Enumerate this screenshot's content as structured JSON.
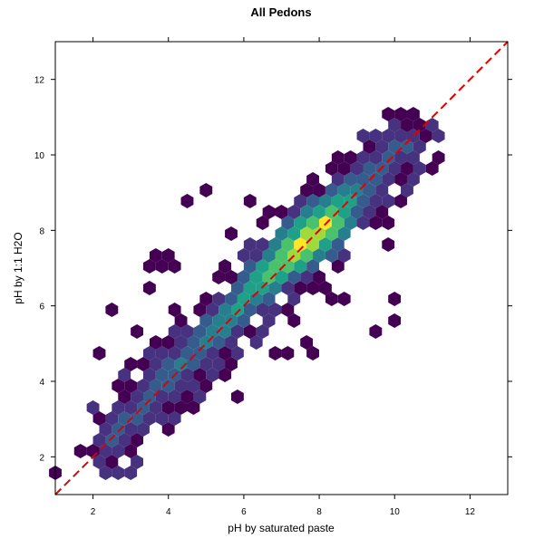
{
  "chart_data": {
    "type": "heatmap",
    "subtype": "hexbin",
    "title": "All Pedons",
    "xlabel": "pH by saturated paste",
    "ylabel": "pH by 1:1 H2O",
    "xlim": [
      1,
      13
    ],
    "ylim": [
      1,
      13
    ],
    "x_ticks": [
      2,
      4,
      6,
      8,
      10,
      12
    ],
    "y_ticks": [
      2,
      4,
      6,
      8,
      10,
      12
    ],
    "x_tick_labels": [
      "2",
      "4",
      "6",
      "8",
      "10",
      "12"
    ],
    "y_tick_labels": [
      "2",
      "4",
      "6",
      "8",
      "10",
      "12"
    ],
    "grid": false,
    "reference_line": {
      "slope": 1,
      "intercept": 0,
      "style": "dashed",
      "color": "#e00000"
    },
    "colormap": [
      "#440154",
      "#46327e",
      "#365c8d",
      "#277f8e",
      "#1fa187",
      "#4ac16d",
      "#9fda3a",
      "#fde725"
    ],
    "ridge": [
      [
        2.5,
        2.4
      ],
      [
        3.5,
        3.6
      ],
      [
        4.5,
        4.6
      ],
      [
        5.5,
        5.6
      ],
      [
        6.5,
        6.7
      ],
      [
        7.5,
        7.6
      ],
      [
        8.5,
        8.5
      ],
      [
        9.5,
        9.6
      ],
      [
        10.3,
        10.3
      ]
    ],
    "outliers": [
      [
        1.0,
        1.5
      ],
      [
        1.7,
        2.1
      ],
      [
        2.3,
        4.8
      ],
      [
        2.6,
        5.9
      ],
      [
        3.3,
        5.3
      ],
      [
        3.6,
        7.2
      ],
      [
        3.8,
        7.2
      ],
      [
        4.1,
        7.2
      ],
      [
        3.5,
        6.4
      ],
      [
        4.5,
        8.6
      ],
      [
        4.9,
        9.1
      ],
      [
        5.6,
        7.8
      ],
      [
        5.5,
        6.9
      ],
      [
        5.7,
        6.8
      ],
      [
        5.8,
        3.7
      ],
      [
        4.7,
        3.4
      ],
      [
        5.5,
        4.0
      ],
      [
        5.8,
        4.4
      ],
      [
        6.8,
        5.6
      ],
      [
        7.3,
        5.6
      ],
      [
        7.0,
        4.8
      ],
      [
        7.7,
        5.1
      ],
      [
        7.9,
        4.8
      ],
      [
        7.3,
        6.3
      ],
      [
        7.7,
        6.5
      ],
      [
        8.2,
        6.3
      ],
      [
        8.5,
        6.2
      ],
      [
        10.0,
        6.2
      ],
      [
        10.1,
        5.6
      ],
      [
        9.6,
        5.4
      ],
      [
        9.8,
        7.6
      ],
      [
        9.8,
        8.3
      ],
      [
        10.1,
        8.8
      ],
      [
        10.2,
        9.4
      ],
      [
        10.5,
        9.4
      ],
      [
        9.4,
        9.1
      ],
      [
        10.6,
        10.4
      ],
      [
        10.8,
        10.8
      ],
      [
        10.4,
        11.0
      ],
      [
        4.8,
        4.9
      ],
      [
        3.2,
        3.2
      ],
      [
        2.2,
        2.4
      ],
      [
        2.6,
        2.2
      ],
      [
        4.2,
        6.0
      ],
      [
        6.2,
        8.9
      ]
    ]
  }
}
